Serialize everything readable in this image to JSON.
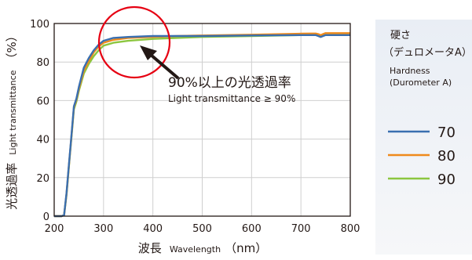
{
  "chart_data": {
    "type": "line",
    "title": "",
    "xlabel": {
      "cn": "波長",
      "en": "Wavelength",
      "unit": "（nm）"
    },
    "ylabel": {
      "cn": "光透過率",
      "en": "Light transmittance",
      "unit": "（%）"
    },
    "xlim": [
      200,
      800
    ],
    "ylim": [
      0,
      100
    ],
    "xticks": [
      "200",
      "300",
      "400",
      "500",
      "600",
      "700",
      "800"
    ],
    "yticks": [
      "0",
      "20",
      "40",
      "60",
      "80",
      "100"
    ],
    "grid": true,
    "legend": {
      "position": "right",
      "title_cn": [
        "硬さ",
        "（デュロメータA）"
      ],
      "title_en": [
        "Hardness",
        "(Durometer A)"
      ]
    },
    "annotation": {
      "text_cn": "90%以上の光透過率",
      "text_en": "Light transmittance ≥ 90%",
      "highlight_color": "#e60012",
      "target": {
        "x": 370,
        "y": 93
      }
    },
    "series": [
      {
        "name": "70",
        "color": "#3a6fb0",
        "x": [
          200,
          210,
          215,
          220,
          225,
          230,
          235,
          240,
          245,
          250,
          260,
          270,
          280,
          290,
          300,
          320,
          350,
          400,
          450,
          500,
          600,
          700,
          720,
          730,
          735,
          740,
          745,
          750,
          760,
          800
        ],
        "y": [
          0,
          0,
          0,
          0.5,
          12,
          27,
          42,
          57,
          61,
          67,
          77,
          82,
          86,
          89,
          91,
          92.5,
          93,
          93.5,
          93.5,
          93.5,
          93.8,
          94,
          94,
          94,
          93.5,
          93,
          93.5,
          94,
          94,
          94
        ]
      },
      {
        "name": "80",
        "color": "#ef8a1b",
        "x": [
          200,
          210,
          215,
          220,
          225,
          230,
          235,
          240,
          245,
          250,
          260,
          270,
          280,
          290,
          300,
          320,
          350,
          400,
          450,
          500,
          600,
          700,
          720,
          730,
          735,
          740,
          745,
          750,
          760,
          800
        ],
        "y": [
          0,
          0,
          0,
          0.5,
          11.5,
          26.5,
          41.5,
          56.5,
          60.5,
          66,
          75.5,
          80.5,
          85,
          88,
          90,
          91.5,
          92.5,
          93,
          93.5,
          93.8,
          94.2,
          94.7,
          94.8,
          94.8,
          94.5,
          94,
          94.5,
          95,
          95,
          95
        ]
      },
      {
        "name": "90",
        "color": "#8cc63f",
        "x": [
          200,
          210,
          215,
          220,
          225,
          230,
          235,
          240,
          245,
          250,
          260,
          270,
          280,
          290,
          300,
          320,
          350,
          400,
          450,
          500,
          600,
          700,
          720,
          730,
          735,
          740,
          745,
          750,
          760,
          800
        ],
        "y": [
          0,
          0,
          0,
          0.5,
          11,
          26,
          41,
          55.5,
          59.5,
          65,
          74,
          79,
          83,
          86,
          88.5,
          90,
          91,
          92,
          92.5,
          93,
          93.5,
          94,
          94,
          94,
          93.8,
          93.5,
          93.8,
          94,
          94,
          94
        ]
      }
    ]
  }
}
